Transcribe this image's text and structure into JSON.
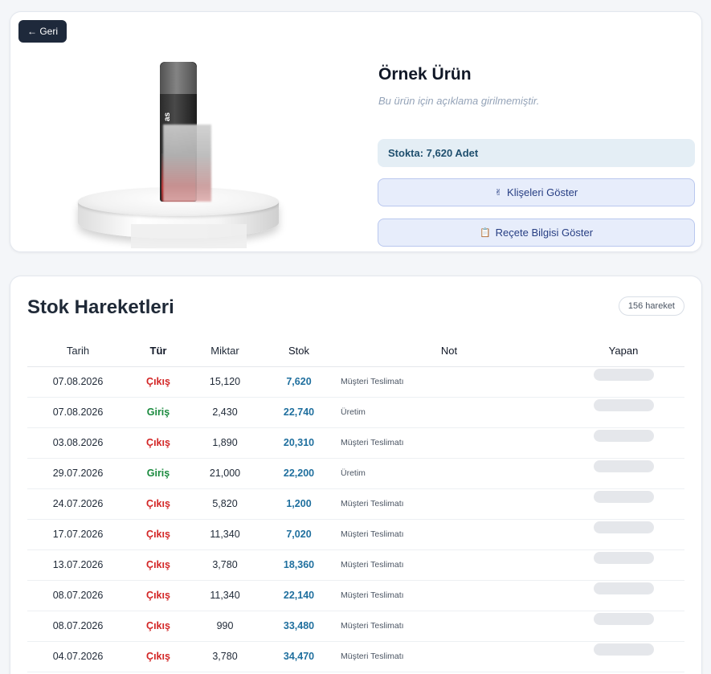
{
  "product": {
    "back_label": "← Geri",
    "title": "Örnek Ürün",
    "description": "Bu ürün için açıklama girilmemiştir.",
    "stock_label": "Stokta: 7,620 Adet",
    "can_text": "as",
    "buttons": {
      "klise_label": "Klişeleri Göster",
      "klise_icon": "✌",
      "recete_label": "Reçete Bilgisi Göster",
      "recete_icon": "📋"
    }
  },
  "movements": {
    "title": "Stok Hareketleri",
    "count_label": "156 hareket",
    "columns": [
      "Tarih",
      "Tür",
      "Miktar",
      "Stok",
      "Not",
      "Yapan"
    ],
    "rows": [
      {
        "date": "07.08.2026",
        "type": "Çıkış",
        "qty": "15,120",
        "stock": "7,620",
        "note": "Müşteri Teslimatı"
      },
      {
        "date": "07.08.2026",
        "type": "Giriş",
        "qty": "2,430",
        "stock": "22,740",
        "note": "Üretim"
      },
      {
        "date": "03.08.2026",
        "type": "Çıkış",
        "qty": "1,890",
        "stock": "20,310",
        "note": "Müşteri Teslimatı"
      },
      {
        "date": "29.07.2026",
        "type": "Giriş",
        "qty": "21,000",
        "stock": "22,200",
        "note": "Üretim"
      },
      {
        "date": "24.07.2026",
        "type": "Çıkış",
        "qty": "5,820",
        "stock": "1,200",
        "note": "Müşteri Teslimatı"
      },
      {
        "date": "17.07.2026",
        "type": "Çıkış",
        "qty": "11,340",
        "stock": "7,020",
        "note": "Müşteri Teslimatı"
      },
      {
        "date": "13.07.2026",
        "type": "Çıkış",
        "qty": "3,780",
        "stock": "18,360",
        "note": "Müşteri Teslimatı"
      },
      {
        "date": "08.07.2026",
        "type": "Çıkış",
        "qty": "11,340",
        "stock": "22,140",
        "note": "Müşteri Teslimatı"
      },
      {
        "date": "08.07.2026",
        "type": "Çıkış",
        "qty": "990",
        "stock": "33,480",
        "note": "Müşteri Teslimatı"
      },
      {
        "date": "04.07.2026",
        "type": "Çıkış",
        "qty": "3,780",
        "stock": "34,470",
        "note": "Müşteri Teslimatı"
      }
    ]
  },
  "colors": {
    "type_out": "#d32626",
    "type_in": "#1a8a3e",
    "stock_value": "#1f6f9e",
    "back_button": "#1e293b"
  }
}
